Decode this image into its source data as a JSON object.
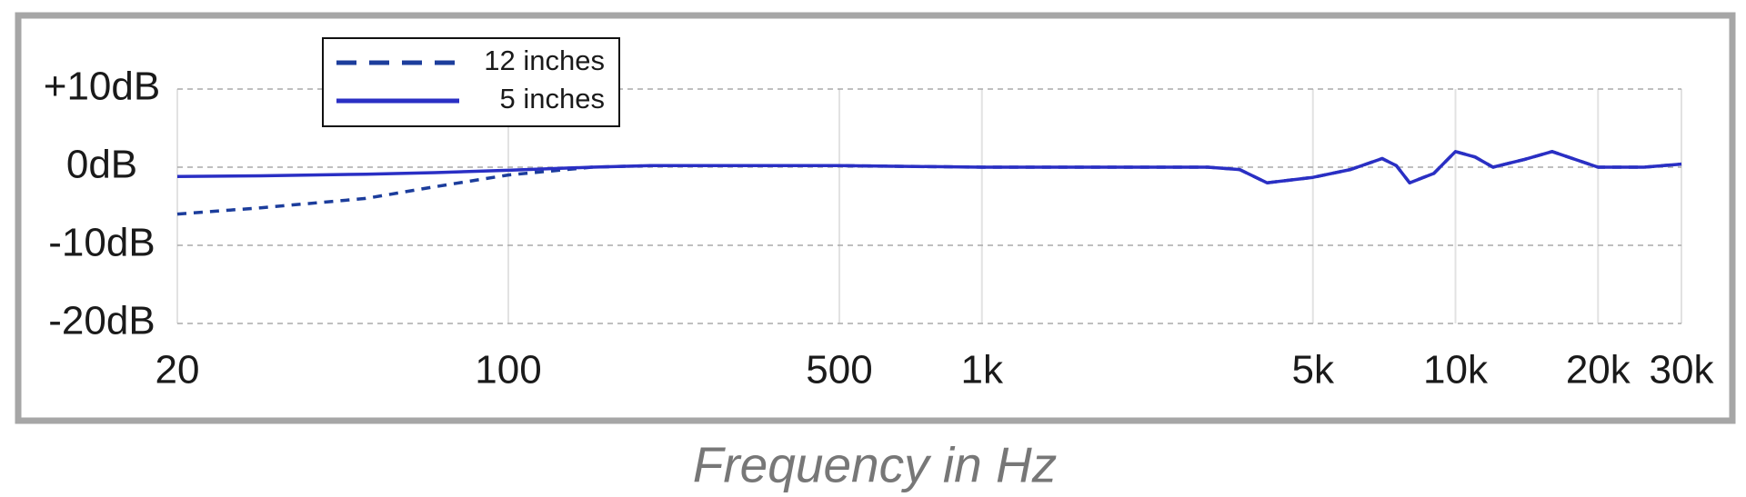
{
  "chart_data": {
    "type": "line",
    "xlabel": "Frequency in Hz",
    "xscale": "log",
    "x": [
      20,
      30,
      50,
      70,
      100,
      150,
      200,
      300,
      500,
      1000,
      2000,
      3000,
      3500,
      4000,
      5000,
      6000,
      7000,
      7500,
      8000,
      9000,
      10000,
      11000,
      12000,
      14000,
      16000,
      20000,
      25000,
      30000
    ],
    "series": [
      {
        "name": "12 inches",
        "color": "#1c3d9c",
        "dash": true,
        "values": [
          -6,
          -5.2,
          -4,
          -2.5,
          -1,
          0,
          0.2,
          0.2,
          0.2,
          0,
          0,
          0,
          -0.3,
          -2,
          -1.3,
          -0.3,
          1.1,
          0.2,
          -2,
          -0.8,
          2,
          1.3,
          0,
          1,
          2,
          0,
          0,
          0.4
        ]
      },
      {
        "name": "5 inches",
        "color": "#2a2fc4",
        "dash": false,
        "values": [
          -1.2,
          -1.1,
          -0.9,
          -0.7,
          -0.4,
          0,
          0.2,
          0.2,
          0.2,
          0,
          0,
          0,
          -0.3,
          -2,
          -1.3,
          -0.3,
          1.1,
          0.2,
          -2,
          -0.8,
          2,
          1.3,
          0,
          1,
          2,
          0,
          0,
          0.4
        ]
      }
    ],
    "xlim": [
      20,
      30000
    ],
    "xticks": [
      20,
      100,
      500,
      {
        "value": 1000,
        "label": "1k"
      },
      {
        "value": 5000,
        "label": "5k"
      },
      {
        "value": 10000,
        "label": "10k"
      },
      {
        "value": 20000,
        "label": "20k"
      },
      {
        "value": 30000,
        "label": "30k"
      }
    ],
    "ylim": [
      -20,
      10
    ],
    "yticks": [
      {
        "value": 10,
        "label": "+10dB"
      },
      {
        "value": 0,
        "label": "0dB"
      },
      {
        "value": -10,
        "label": "-10dB"
      },
      {
        "value": -20,
        "label": "-20dB"
      }
    ],
    "grid": true,
    "legend": "upper left"
  }
}
